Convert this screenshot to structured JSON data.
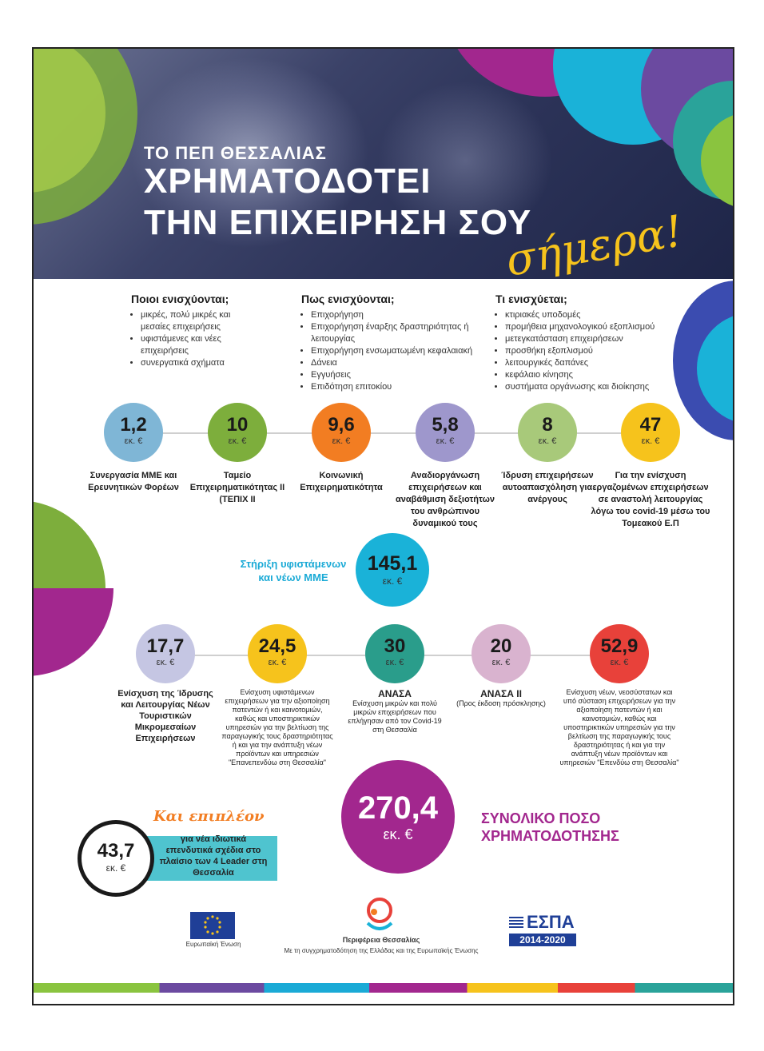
{
  "header": {
    "line1": "ΤΟ ΠΕΠ ΘΕΣΣΑΛΙΑΣ",
    "line2": "ΧΡΗΜΑΤΟΔΟΤΕΙ",
    "line3": "ΤΗΝ ΕΠΙΧΕΙΡΗΣΗ ΣΟΥ",
    "script_word": "σήμερα!"
  },
  "columns": [
    {
      "title": "Ποιοι ενισχύονται;",
      "items": [
        "μικρές, πολύ μικρές και μεσαίες επιχειρήσεις",
        "υφιστάμενες και νέες επιχειρήσεις",
        "συνεργατικά σχήματα"
      ]
    },
    {
      "title": "Πως ενισχύονται;",
      "items": [
        "Επιχορήγηση",
        "Επιχορήγηση έναρξης δραστηριότητας ή λειτουργίας",
        "Επιχορήγηση ενσωματωμένη κεφαλαιακή",
        "Δάνεια",
        "Εγγυήσεις",
        "Επιδότηση επιτοκίου"
      ]
    },
    {
      "title": "Τι ενισχύεται;",
      "items": [
        "κτιριακές υποδομές",
        "προμήθεια μηχανολογικού εξοπλισμού",
        "μετεγκατάσταση επιχειρήσεων",
        "προσθήκη εξοπλισμού",
        "λειτουργικές δαπάνες",
        "κεφάλαιο κίνησης",
        "συστήματα οργάνωσης και διοίκησης"
      ]
    }
  ],
  "row1": [
    {
      "value": "1,2",
      "unit": "εκ. €",
      "color": "#7fb6d6",
      "label": "Συνεργασία ΜΜΕ και Ερευνητικών Φορέων"
    },
    {
      "value": "10",
      "unit": "εκ. €",
      "color": "#7dae3c",
      "label": "Ταμείο Επιχειρηματικότητας ΙΙ (ΤΕΠΙΧ ΙΙ"
    },
    {
      "value": "9,6",
      "unit": "εκ. €",
      "color": "#f27d22",
      "label": "Κοινωνική Επιχειρηματικότητα"
    },
    {
      "value": "5,8",
      "unit": "εκ. €",
      "color": "#9e97cc",
      "label": "Αναδιοργάνωση επιχειρήσεων και αναβάθμιση δεξιοτήτων του ανθρώπινου δυναμικού τους"
    },
    {
      "value": "8",
      "unit": "εκ. €",
      "color": "#a8c97a",
      "label": "Ίδρυση επιχειρήσεων αυτοαπασχόληση για ανέργους"
    },
    {
      "value": "47",
      "unit": "εκ. €",
      "color": "#f6c31c",
      "label": "Για την ενίσχυση εργαζομένων επιχειρήσεων σε αναστολή λειτουργίας λόγω του covid-19 μέσω του Τομεακού Ε.Π"
    }
  ],
  "support": {
    "label": "Στήριξη υφιστάμενων και νέων ΜΜΕ",
    "value": "145,1",
    "unit": "εκ. €",
    "color": "#1ab2d8"
  },
  "row2": [
    {
      "value": "17,7",
      "unit": "εκ. €",
      "color": "#c5c6e3",
      "title": "",
      "desc": "Ενίσχυση της Ίδρυσης και Λειτουργίας Νέων Τουριστικών Μικρομεσαίων Επιχειρήσεων"
    },
    {
      "value": "24,5",
      "unit": "εκ. €",
      "color": "#f6c31c",
      "title": "",
      "desc": "Ενίσχυση υφιστάμενων επιχειρήσεων για την αξιοποίηση πατεντών ή και καινοτομιών, καθώς και υποστηρικτικών υπηρεσιών για την βελτίωση της παραγωγικής τους δραστηριότητας ή και για την ανάπτυξη νέων προϊόντων και υπηρεσιών \"Επανεπενδύω στη Θεσσαλία\""
    },
    {
      "value": "30",
      "unit": "εκ. €",
      "color": "#2a9d8b",
      "title": "ΑΝΑΣΑ",
      "desc": "Ενίσχυση μικρών και πολύ μικρών επιχειρήσεων που επλήγησαν από τον Covid-19 στη Θεσσαλία"
    },
    {
      "value": "20",
      "unit": "εκ. €",
      "color": "#d9b3cf",
      "title": "ΑΝΑΣΑ ΙΙ",
      "desc": "(Προς έκδοση πρόσκλησης)"
    },
    {
      "value": "52,9",
      "unit": "εκ. €",
      "color": "#e8413a",
      "title": "",
      "desc": "Ενίσχυση νέων, νεοσύστατων και υπό σύσταση επιχειρήσεων για την αξιοποίηση πατεντών ή και καινοτομιών, καθώς και υποστηρικτικών υπηρεσιών για την βελτίωση της παραγωγικής τους δραστηριότητας ή και για την ανάπτυξη νέων προϊόντων και υπηρεσιών \"Επενδύω στη Θεσσαλία\""
    }
  ],
  "total": {
    "value": "270,4",
    "unit": "εκ. €",
    "label_line1": "ΣΥΝΟΛΙΚΟ ΠΟΣΟ",
    "label_line2": "ΧΡΗΜΑΤΟΔΟΤΗΣΗΣ",
    "color": "#a2278e"
  },
  "extra": {
    "heading": "Και επιπλέον",
    "value": "43,7",
    "unit": "εκ. €",
    "text": "για νέα ιδιωτικά επενδυτικά σχέδια στο πλαίσιο των 4 Leader στη Θεσσαλία",
    "color": "#4fc4cf"
  },
  "footer": {
    "eu_caption": "Ευρωπαϊκή Ένωση",
    "region_name": "Περιφέρεια Θεσσαλίας",
    "cofunding": "Με τη συγχρηματοδότηση της Ελλάδας και της Ευρωπαϊκής Ένωσης",
    "espa_title": "ΕΣΠΑ",
    "espa_years": "2014-2020"
  }
}
